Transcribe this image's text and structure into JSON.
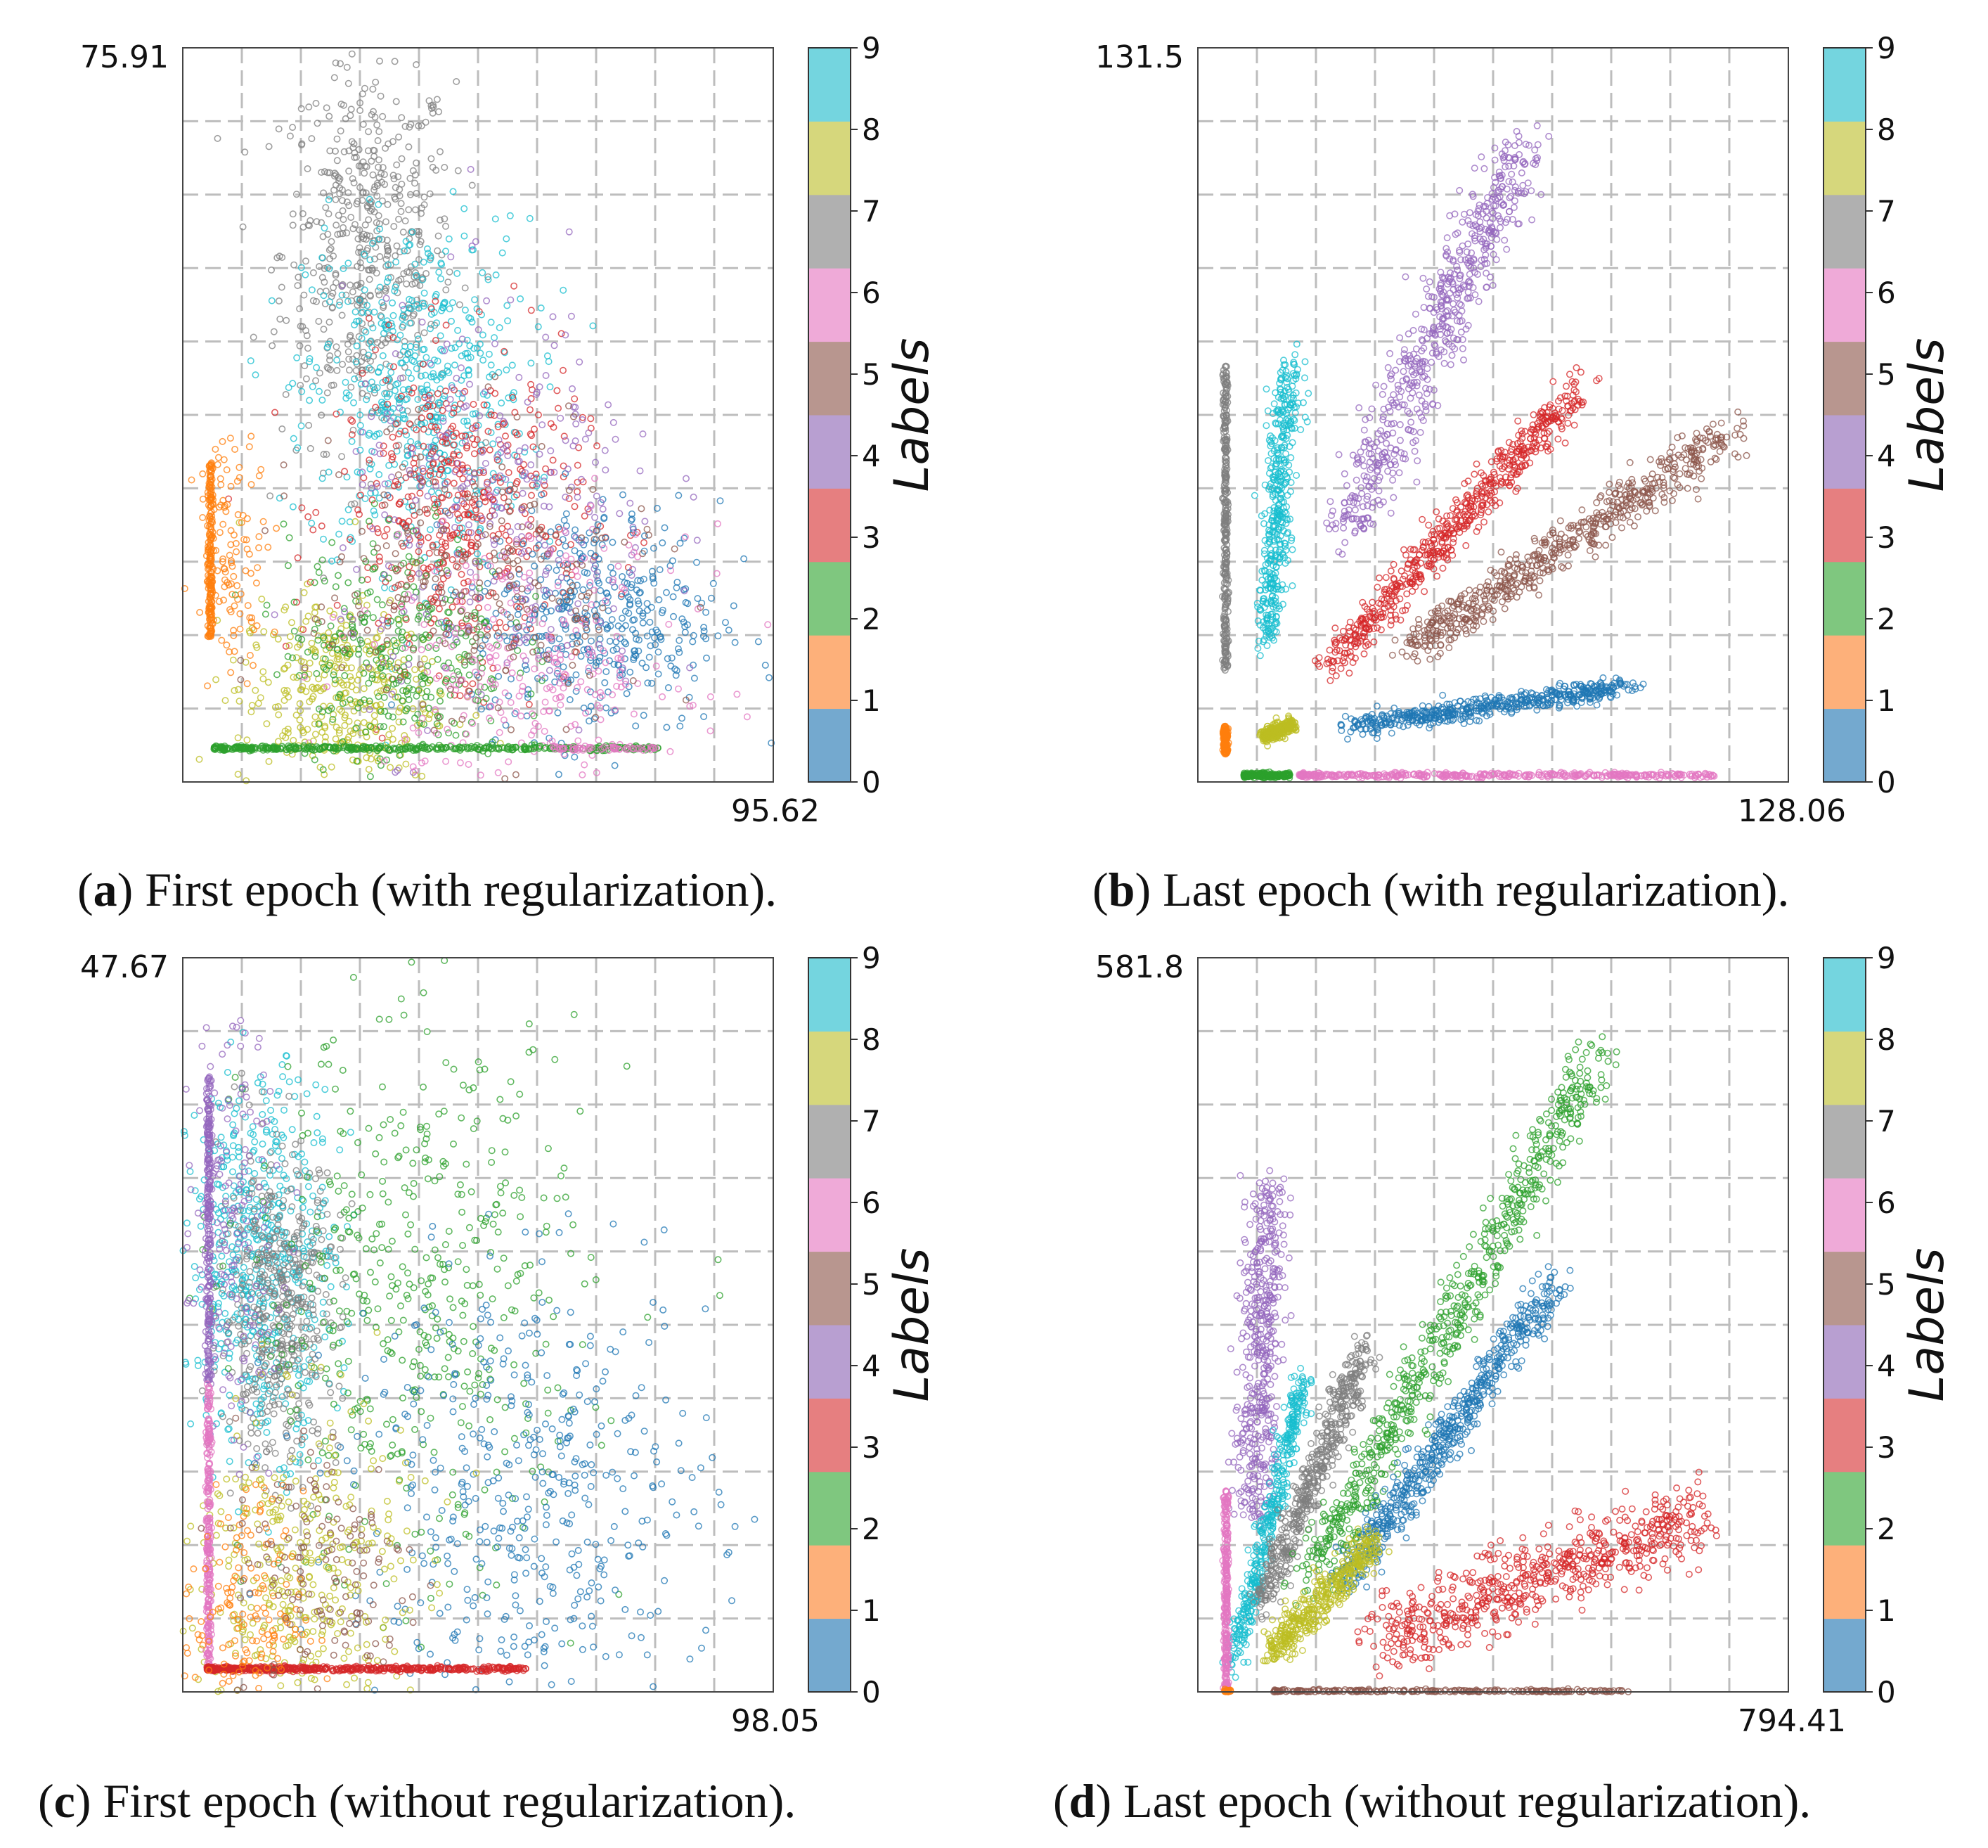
{
  "colorbar": {
    "label": "Labels",
    "ticks": [
      "0",
      "1",
      "2",
      "3",
      "4",
      "5",
      "6",
      "7",
      "8",
      "9"
    ],
    "colors": [
      "#1f77b4",
      "#ff7f0e",
      "#2ca02c",
      "#d62728",
      "#9467bd",
      "#8c564b",
      "#e377c2",
      "#7f7f7f",
      "#bcbd22",
      "#17becf"
    ]
  },
  "chart_data": [
    {
      "type": "scatter",
      "caption_letter": "a",
      "caption_rest": ") First epoch (with regularization).",
      "y_max_label": "75.91",
      "x_max_label": "95.62",
      "xlim": [
        0,
        95.62
      ],
      "ylim": [
        0,
        75.91
      ],
      "grid": true,
      "clusters": [
        {
          "label": 7,
          "kind": "blob",
          "cx": 30,
          "cy": 55,
          "sx": 7,
          "sy": 10,
          "n": 520
        },
        {
          "label": 9,
          "kind": "blob",
          "cx": 38,
          "cy": 40,
          "sx": 9,
          "sy": 9,
          "n": 520
        },
        {
          "label": 3,
          "kind": "blob",
          "cx": 45,
          "cy": 28,
          "sx": 10,
          "sy": 8,
          "n": 480
        },
        {
          "label": 0,
          "kind": "blob",
          "cx": 67,
          "cy": 17,
          "sx": 10,
          "sy": 6,
          "n": 420
        },
        {
          "label": 8,
          "kind": "blob",
          "cx": 25,
          "cy": 9,
          "sx": 8,
          "sy": 5,
          "n": 380
        },
        {
          "label": 2,
          "kind": "blob",
          "cx": 35,
          "cy": 14,
          "sx": 9,
          "sy": 6,
          "n": 320
        },
        {
          "label": 4,
          "kind": "blob",
          "cx": 52,
          "cy": 27,
          "sx": 13,
          "sy": 11,
          "n": 300
        },
        {
          "label": 6,
          "kind": "blob",
          "cx": 56,
          "cy": 12,
          "sx": 13,
          "sy": 7,
          "n": 280
        },
        {
          "label": 5,
          "kind": "blob",
          "cx": 48,
          "cy": 20,
          "sx": 14,
          "sy": 8,
          "n": 240
        },
        {
          "label": 1,
          "kind": "vline",
          "x": 4.5,
          "y0": 15,
          "y1": 33,
          "n": 200
        },
        {
          "label": 1,
          "kind": "blob",
          "cx": 8,
          "cy": 24,
          "sx": 3,
          "sy": 6,
          "n": 120
        },
        {
          "label": 2,
          "kind": "hline",
          "y": 3.5,
          "x0": 5,
          "x1": 77,
          "n": 420
        },
        {
          "label": 6,
          "kind": "hline",
          "y": 3.5,
          "x0": 60,
          "x1": 77,
          "n": 60
        }
      ]
    },
    {
      "type": "scatter",
      "caption_letter": "b",
      "caption_rest": ") Last epoch (with regularization).",
      "y_max_label": "131.5",
      "x_max_label": "128.06",
      "xlim": [
        0,
        128.06
      ],
      "ylim": [
        0,
        131.5
      ],
      "grid": true,
      "clusters": [
        {
          "label": 7,
          "kind": "vline",
          "x": 6,
          "y0": 20,
          "y1": 75,
          "n": 320
        },
        {
          "label": 9,
          "kind": "seg",
          "x0": 15,
          "y0": 25,
          "x1": 20,
          "y1": 75,
          "w": 1.6,
          "n": 420
        },
        {
          "label": 4,
          "kind": "seg",
          "x0": 32,
          "y0": 45,
          "x1": 71,
          "y1": 115,
          "w": 3.0,
          "n": 600
        },
        {
          "label": 3,
          "kind": "seg",
          "x0": 30,
          "y0": 22,
          "x1": 82,
          "y1": 70,
          "w": 1.8,
          "n": 600
        },
        {
          "label": 5,
          "kind": "seg",
          "x0": 46,
          "y0": 24,
          "x1": 115,
          "y1": 62,
          "w": 2.0,
          "n": 600
        },
        {
          "label": 0,
          "kind": "seg",
          "x0": 34,
          "y0": 10,
          "x1": 92,
          "y1": 17,
          "w": 0.9,
          "n": 520
        },
        {
          "label": 8,
          "kind": "seg",
          "x0": 14,
          "y0": 8,
          "x1": 21,
          "y1": 10.5,
          "w": 0.6,
          "n": 260
        },
        {
          "label": 1,
          "kind": "vline",
          "x": 6,
          "y0": 5,
          "y1": 10,
          "n": 160
        },
        {
          "label": 2,
          "kind": "hline",
          "y": 1.2,
          "x0": 10,
          "x1": 20,
          "n": 220
        },
        {
          "label": 6,
          "kind": "hline",
          "y": 1.2,
          "x0": 22,
          "x1": 112,
          "n": 420
        }
      ]
    },
    {
      "type": "scatter",
      "caption_letter": "c",
      "caption_rest": ") First epoch (without regularization).",
      "y_max_label": "47.67",
      "x_max_label": "98.05",
      "xlim": [
        0,
        98.05
      ],
      "ylim": [
        0,
        47.67
      ],
      "grid": true,
      "clusters": [
        {
          "label": 9,
          "kind": "blob",
          "cx": 13,
          "cy": 28,
          "sx": 6,
          "sy": 6,
          "n": 560
        },
        {
          "label": 7,
          "kind": "blob",
          "cx": 16,
          "cy": 25,
          "sx": 5,
          "sy": 5,
          "n": 480
        },
        {
          "label": 2,
          "kind": "blob",
          "cx": 39,
          "cy": 25,
          "sx": 14,
          "sy": 9,
          "n": 480
        },
        {
          "label": 0,
          "kind": "blob",
          "cx": 58,
          "cy": 13,
          "sx": 15,
          "sy": 7,
          "n": 460
        },
        {
          "label": 8,
          "kind": "blob",
          "cx": 19,
          "cy": 7,
          "sx": 9,
          "sy": 6,
          "n": 380
        },
        {
          "label": 4,
          "kind": "vline",
          "x": 4.3,
          "y0": 20,
          "y1": 40,
          "n": 260
        },
        {
          "label": 4,
          "kind": "blob",
          "cx": 8,
          "cy": 30,
          "sx": 4,
          "sy": 7,
          "n": 160
        },
        {
          "label": 6,
          "kind": "vline",
          "x": 4.3,
          "y0": 1.5,
          "y1": 20,
          "n": 260
        },
        {
          "label": 3,
          "kind": "hline",
          "y": 1.5,
          "x0": 4,
          "x1": 57,
          "n": 520
        },
        {
          "label": 1,
          "kind": "blob",
          "cx": 10,
          "cy": 5,
          "sx": 5,
          "sy": 4,
          "n": 160
        },
        {
          "label": 5,
          "kind": "blob",
          "cx": 24,
          "cy": 8,
          "sx": 8,
          "sy": 5,
          "n": 150
        }
      ]
    },
    {
      "type": "scatter",
      "caption_letter": "d",
      "caption_rest": ") Last epoch (without regularization).",
      "y_max_label": "581.8",
      "x_max_label": "794.41",
      "xlim": [
        0,
        794.41
      ],
      "ylim": [
        0,
        581.8
      ],
      "grid": true,
      "clusters": [
        {
          "label": 4,
          "kind": "seg",
          "x0": 72,
          "y0": 140,
          "x1": 98,
          "y1": 400,
          "w": 14,
          "n": 460
        },
        {
          "label": 9,
          "kind": "seg",
          "x0": 50,
          "y0": 25,
          "x1": 143,
          "y1": 250,
          "w": 7,
          "n": 420
        },
        {
          "label": 7,
          "kind": "seg",
          "x0": 85,
          "y0": 70,
          "x1": 222,
          "y1": 265,
          "w": 9,
          "n": 520
        },
        {
          "label": 2,
          "kind": "seg",
          "x0": 150,
          "y0": 90,
          "x1": 531,
          "y1": 498,
          "w": 13,
          "n": 700
        },
        {
          "label": 0,
          "kind": "seg",
          "x0": 200,
          "y0": 90,
          "x1": 475,
          "y1": 320,
          "w": 10,
          "n": 620
        },
        {
          "label": 8,
          "kind": "seg",
          "x0": 95,
          "y0": 30,
          "x1": 240,
          "y1": 120,
          "w": 8,
          "n": 420
        },
        {
          "label": 3,
          "kind": "seg",
          "x0": 240,
          "y0": 40,
          "x1": 680,
          "y1": 140,
          "w": 15,
          "n": 640
        },
        {
          "label": 6,
          "kind": "vline",
          "x": 38,
          "y0": 0,
          "y1": 160,
          "n": 280
        },
        {
          "label": 5,
          "kind": "hline",
          "y": 0,
          "x0": 100,
          "x1": 580,
          "n": 460
        },
        {
          "label": 1,
          "kind": "hline",
          "y": 0,
          "x0": 36,
          "x1": 44,
          "n": 40
        }
      ]
    }
  ]
}
